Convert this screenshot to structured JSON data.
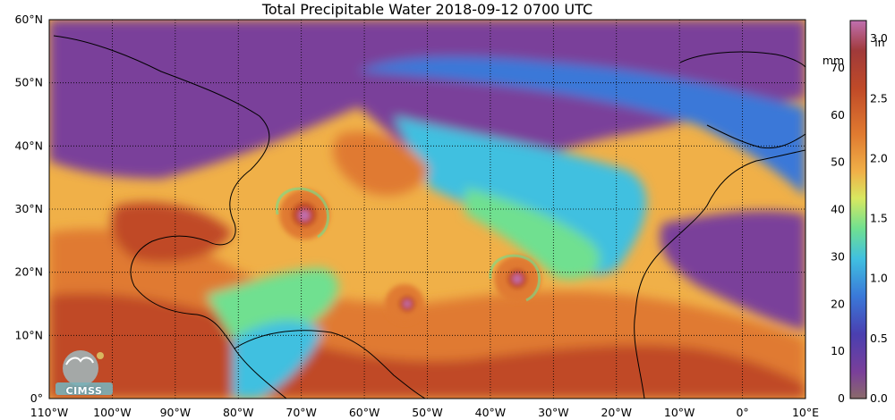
{
  "title": "Total Precipitable Water  2018-09-12 0700 UTC",
  "map": {
    "lat_ticks": [
      "60°N",
      "50°N",
      "40°N",
      "30°N",
      "20°N",
      "10°N",
      "0°"
    ],
    "lon_ticks": [
      "110°W",
      "100°W",
      "90°W",
      "80°W",
      "70°W",
      "60°W",
      "50°W",
      "40°W",
      "30°W",
      "20°W",
      "10°W",
      "0°",
      "10°E"
    ],
    "extent": {
      "lon": [
        -110,
        10
      ],
      "lat": [
        0,
        60
      ]
    },
    "grid": "dotted"
  },
  "colorbar": {
    "mm_unit": "mm",
    "in_unit": "in",
    "mm_ticks": [
      "0",
      "10",
      "20",
      "30",
      "40",
      "50",
      "60",
      "70"
    ],
    "in_ticks": [
      "0.0",
      "0.5",
      "1.0",
      "1.5",
      "2.0",
      "2.5",
      "3.0"
    ],
    "colors": [
      "#8a6a6a",
      "#7a3f9a",
      "#4a3fb0",
      "#3a78d8",
      "#40c0e0",
      "#70e090",
      "#d8e860",
      "#f0b048",
      "#e07a30",
      "#c04a28",
      "#a03a3a",
      "#c070b0"
    ]
  },
  "logo": {
    "text": "CIMSS"
  }
}
